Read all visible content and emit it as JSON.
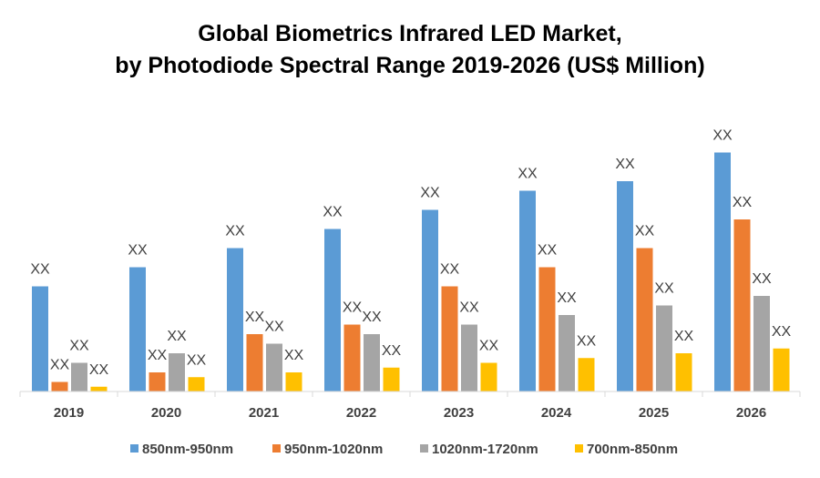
{
  "chart_data": {
    "type": "bar",
    "title": "Global Biometrics Infrared LED Market,",
    "subtitle": "by Photodiode Spectral Range 2019-2026 (US$ Million)",
    "xlabel": "",
    "ylabel": "",
    "categories": [
      "2019",
      "2020",
      "2021",
      "2022",
      "2023",
      "2024",
      "2025",
      "2026"
    ],
    "ylim": [
      0,
      28
    ],
    "grid": false,
    "y_axis_visible": false,
    "legend_position": "bottom",
    "data_label": "XX",
    "series": [
      {
        "name": "850nm-950nm",
        "color": "#5B9BD5",
        "values": [
          11,
          13,
          15,
          17,
          19,
          21,
          22,
          25
        ]
      },
      {
        "name": "950nm-1020nm",
        "color": "#ED7D31",
        "values": [
          1,
          2,
          6,
          7,
          11,
          13,
          15,
          18
        ]
      },
      {
        "name": "1020nm-1720nm",
        "color": "#A5A5A5",
        "values": [
          3,
          4,
          5,
          6,
          7,
          8,
          9,
          10
        ]
      },
      {
        "name": "700nm-850nm",
        "color": "#FFC000",
        "values": [
          0.5,
          1.5,
          2,
          2.5,
          3,
          3.5,
          4,
          4.5
        ]
      }
    ]
  }
}
